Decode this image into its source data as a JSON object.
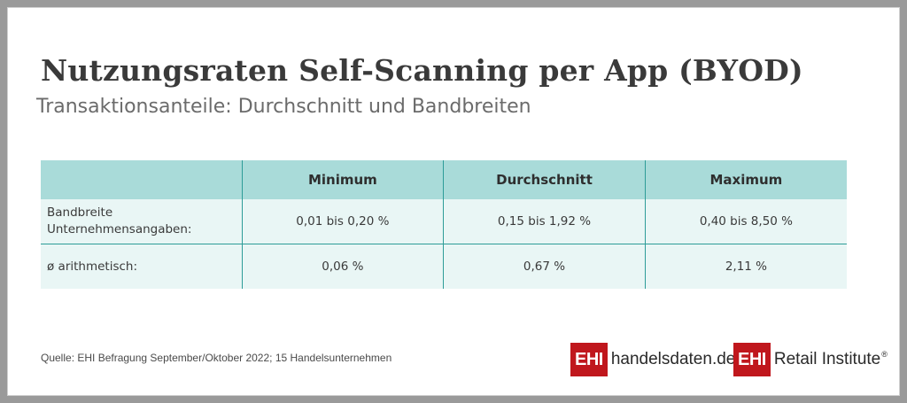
{
  "title": "Nutzungsraten Self-Scanning per App (BYOD)",
  "subtitle": "Transaktionsanteile: Durchschnitt und Bandbreiten",
  "chart_data": {
    "type": "table",
    "title": "Nutzungsraten Self-Scanning per App (BYOD)",
    "subtitle": "Transaktionsanteile: Durchschnitt und Bandbreiten",
    "columns": [
      "",
      "Minimum",
      "Durchschnitt",
      "Maximum"
    ],
    "rows": [
      {
        "label": "Bandbreite Unternehmensangaben:",
        "label_line1": "Bandbreite",
        "label_line2": "Unternehmensangaben:",
        "values": [
          "0,01 bis 0,20 %",
          "0,15 bis 1,92 %",
          "0,40 bis 8,50 %"
        ]
      },
      {
        "label": "ø arithmetisch:",
        "values": [
          "0,06 %",
          "0,67 %",
          "2,11 %"
        ]
      }
    ]
  },
  "source": "Quelle: EHI Befragung September/Oktober 2022; 15 Handelsunternehmen",
  "logos": {
    "left": {
      "box": "EHI",
      "text": "handelsdaten.de"
    },
    "right": {
      "box": "EHI",
      "text": "Retail Institute",
      "mark": "®"
    }
  },
  "colors": {
    "header_bg": "#a9dbd9",
    "body_bg": "#e9f6f5",
    "divider": "#2d9c98",
    "brand_red": "#c0171d"
  }
}
